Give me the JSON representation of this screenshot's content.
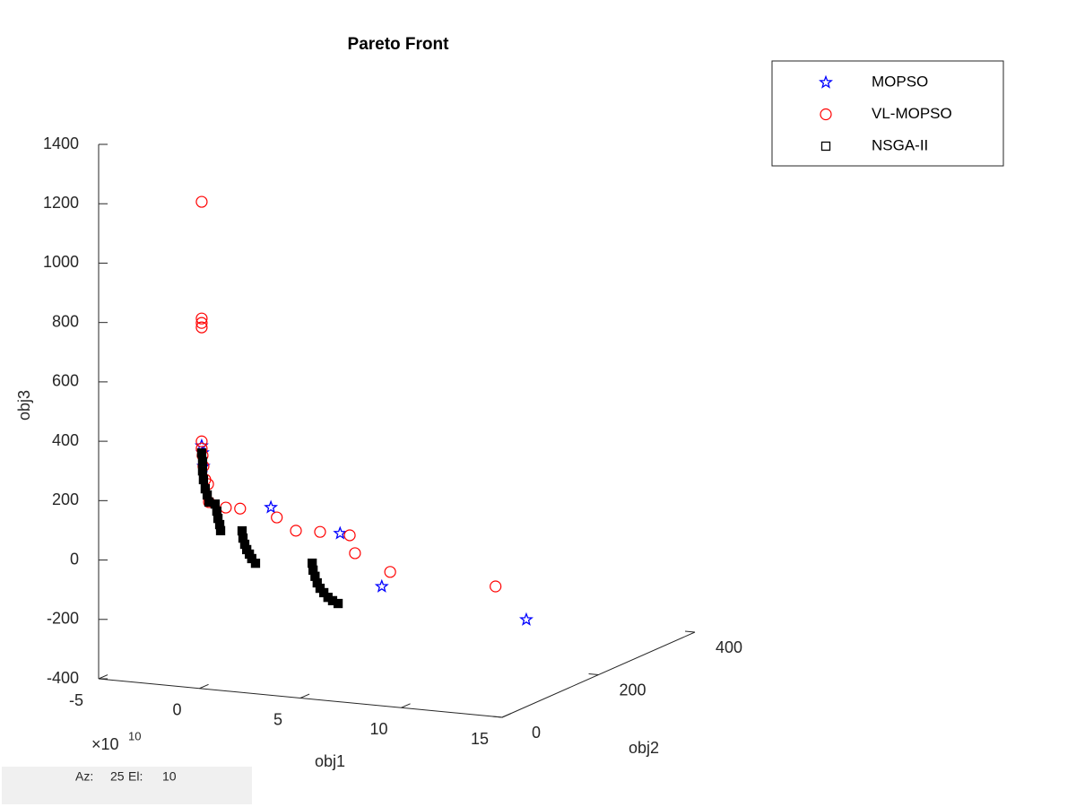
{
  "chart_data": {
    "type": "scatter3d",
    "title": "Pareto Front",
    "x_label": "obj1",
    "y_label": "obj2",
    "z_label": "obj3",
    "x_multiplier": "×10",
    "x_exponent": "10",
    "xlim": [
      -5,
      15
    ],
    "xticks": [
      -5,
      0,
      5,
      10,
      15
    ],
    "ylim": [
      0,
      400
    ],
    "yticks": [
      0,
      200,
      400
    ],
    "zlim": [
      -400,
      1400
    ],
    "zticks": [
      -400,
      -200,
      0,
      200,
      400,
      600,
      800,
      1000,
      1200,
      1400
    ],
    "legend": "top-right",
    "view": {
      "az_label": "Az:",
      "az": 25,
      "el_label": "El:",
      "el": 10
    },
    "series": [
      {
        "name": "MOPSO",
        "color": "#0000ff",
        "marker": "star",
        "x": [
          0.06,
          0.08,
          0.1,
          1.77,
          3.48,
          4.52,
          8.1
        ],
        "y": [
          2,
          3,
          4,
          74,
          146,
          189,
          339
        ],
        "z": [
          416,
          392,
          346,
          168,
          40,
          -163,
          -359
        ]
      },
      {
        "name": "VL-MOPSO",
        "color": "#ff0000",
        "marker": "circle",
        "x": [
          0.06,
          0.06,
          0.06,
          0.06,
          0.06,
          0.06,
          0.08,
          0.1,
          0.14,
          0.21,
          0.23,
          0.66,
          1.01,
          1.92,
          2.39,
          2.99,
          3.72,
          3.86,
          4.72,
          7.34
        ],
        "y": [
          2,
          2,
          2,
          2,
          2,
          2,
          3,
          4,
          6,
          9,
          10,
          27,
          42,
          80,
          100,
          125,
          156,
          161,
          198,
          307
        ],
        "z": [
          1238,
          845,
          830,
          815,
          431,
          407,
          383,
          346,
          300,
          283,
          222,
          194,
          182,
          131,
          75,
          57,
          28,
          -35,
          -119,
          -229
        ]
      },
      {
        "name": "NSGA-II",
        "color": "#000000",
        "marker": "square",
        "x": [
          0.06,
          0.08,
          0.08,
          0.1,
          0.14,
          0.19,
          0.23,
          0.39,
          0.43,
          0.46,
          0.5,
          0.52,
          1.06,
          1.08,
          1.12,
          1.17,
          1.23,
          1.3,
          1.39,
          2.79,
          2.81,
          2.86,
          2.92,
          2.99,
          3.08,
          3.19,
          3.3,
          3.43
        ],
        "y": [
          2,
          3,
          3,
          4,
          6,
          8,
          10,
          16,
          18,
          19,
          21,
          22,
          44,
          45,
          47,
          49,
          52,
          54,
          58,
          117,
          118,
          120,
          122,
          125,
          129,
          133,
          138,
          144
        ],
        "z": [
          392,
          362,
          331,
          301,
          269,
          247,
          222,
          212,
          187,
          162,
          140,
          119,
          106,
          81,
          59,
          40,
          23,
          7,
          -11,
          -44,
          -68,
          -90,
          -113,
          -133,
          -150,
          -168,
          -182,
          -195
        ]
      }
    ]
  }
}
